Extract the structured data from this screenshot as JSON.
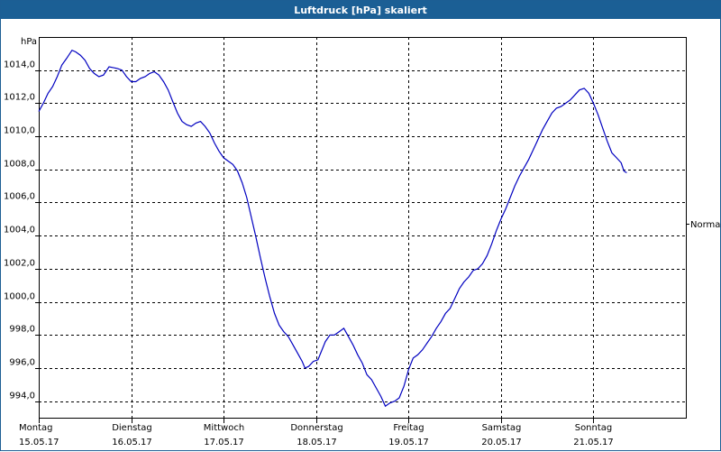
{
  "window": {
    "title": "Luftdruck [hPa] skaliert"
  },
  "chart_data": {
    "type": "line",
    "title": "Luftdruck [hPa] skaliert",
    "ylabel": "hPa",
    "xlabel": "",
    "xlim": [
      0,
      7
    ],
    "ylim": [
      993.0,
      1016.0
    ],
    "yticks": [
      994.0,
      996.0,
      998.0,
      1000.0,
      1002.0,
      1004.0,
      1006.0,
      1008.0,
      1010.0,
      1012.0,
      1014.0
    ],
    "ytick_labels": [
      "994,0",
      "996,0",
      "998,0",
      "1000,0",
      "1002,0",
      "1004,0",
      "1006,0",
      "1008,0",
      "1010,0",
      "1012,0",
      "1014,0"
    ],
    "x_day_labels": [
      {
        "day": "Montag",
        "date": "15.05.17"
      },
      {
        "day": "Dienstag",
        "date": "16.05.17"
      },
      {
        "day": "Mittwoch",
        "date": "17.05.17"
      },
      {
        "day": "Donnerstag",
        "date": "18.05.17"
      },
      {
        "day": "Freitag",
        "date": "19.05.17"
      },
      {
        "day": "Samstag",
        "date": "20.05.17"
      },
      {
        "day": "Sonntag",
        "date": "21.05.17"
      }
    ],
    "grid": true,
    "legend": {
      "position": "right",
      "entries": [
        "Normal"
      ]
    },
    "series": [
      {
        "name": "Luftdruck",
        "color": "#0000c0",
        "points": [
          [
            0.0,
            1011.5
          ],
          [
            0.05,
            1012.0
          ],
          [
            0.1,
            1012.6
          ],
          [
            0.15,
            1013.0
          ],
          [
            0.2,
            1013.6
          ],
          [
            0.25,
            1014.3
          ],
          [
            0.3,
            1014.7
          ],
          [
            0.36,
            1015.2
          ],
          [
            0.4,
            1015.1
          ],
          [
            0.45,
            1014.9
          ],
          [
            0.5,
            1014.6
          ],
          [
            0.55,
            1014.1
          ],
          [
            0.6,
            1013.8
          ],
          [
            0.65,
            1013.6
          ],
          [
            0.7,
            1013.7
          ],
          [
            0.76,
            1014.2
          ],
          [
            0.85,
            1014.1
          ],
          [
            0.9,
            1014.0
          ],
          [
            0.95,
            1013.6
          ],
          [
            1.0,
            1013.3
          ],
          [
            1.05,
            1013.3
          ],
          [
            1.1,
            1013.5
          ],
          [
            1.15,
            1013.6
          ],
          [
            1.2,
            1013.8
          ],
          [
            1.25,
            1013.9
          ],
          [
            1.3,
            1013.7
          ],
          [
            1.35,
            1013.3
          ],
          [
            1.4,
            1012.8
          ],
          [
            1.45,
            1012.1
          ],
          [
            1.5,
            1011.4
          ],
          [
            1.55,
            1010.9
          ],
          [
            1.6,
            1010.7
          ],
          [
            1.65,
            1010.6
          ],
          [
            1.7,
            1010.8
          ],
          [
            1.75,
            1010.9
          ],
          [
            1.8,
            1010.6
          ],
          [
            1.85,
            1010.2
          ],
          [
            1.9,
            1009.6
          ],
          [
            1.95,
            1009.1
          ],
          [
            2.0,
            1008.7
          ],
          [
            2.05,
            1008.5
          ],
          [
            2.1,
            1008.3
          ],
          [
            2.15,
            1007.9
          ],
          [
            2.2,
            1007.2
          ],
          [
            2.25,
            1006.3
          ],
          [
            2.3,
            1005.1
          ],
          [
            2.35,
            1003.9
          ],
          [
            2.4,
            1002.6
          ],
          [
            2.45,
            1001.4
          ],
          [
            2.5,
            1000.3
          ],
          [
            2.55,
            999.3
          ],
          [
            2.6,
            998.6
          ],
          [
            2.65,
            998.2
          ],
          [
            2.7,
            997.9
          ],
          [
            2.75,
            997.4
          ],
          [
            2.8,
            996.9
          ],
          [
            2.85,
            996.4
          ],
          [
            2.88,
            996.0
          ],
          [
            2.92,
            996.1
          ],
          [
            2.97,
            996.4
          ],
          [
            3.02,
            996.5
          ],
          [
            3.05,
            996.9
          ],
          [
            3.1,
            997.6
          ],
          [
            3.15,
            998.0
          ],
          [
            3.2,
            998.0
          ],
          [
            3.25,
            998.2
          ],
          [
            3.3,
            998.4
          ],
          [
            3.35,
            997.9
          ],
          [
            3.4,
            997.4
          ],
          [
            3.45,
            996.8
          ],
          [
            3.5,
            996.3
          ],
          [
            3.55,
            995.6
          ],
          [
            3.6,
            995.3
          ],
          [
            3.65,
            994.8
          ],
          [
            3.7,
            994.3
          ],
          [
            3.75,
            993.7
          ],
          [
            3.8,
            993.9
          ],
          [
            3.85,
            994.0
          ],
          [
            3.9,
            994.2
          ],
          [
            3.95,
            994.9
          ],
          [
            4.0,
            995.9
          ],
          [
            4.05,
            996.6
          ],
          [
            4.1,
            996.8
          ],
          [
            4.15,
            997.1
          ],
          [
            4.2,
            997.5
          ],
          [
            4.25,
            997.9
          ],
          [
            4.3,
            998.4
          ],
          [
            4.35,
            998.8
          ],
          [
            4.4,
            999.3
          ],
          [
            4.45,
            999.6
          ],
          [
            4.5,
            1000.2
          ],
          [
            4.55,
            1000.8
          ],
          [
            4.6,
            1001.2
          ],
          [
            4.65,
            1001.5
          ],
          [
            4.7,
            1001.9
          ],
          [
            4.75,
            1002.0
          ],
          [
            4.8,
            1002.3
          ],
          [
            4.85,
            1002.8
          ],
          [
            4.9,
            1003.5
          ],
          [
            4.95,
            1004.3
          ],
          [
            5.0,
            1005.0
          ],
          [
            5.05,
            1005.6
          ],
          [
            5.1,
            1006.3
          ],
          [
            5.15,
            1007.0
          ],
          [
            5.2,
            1007.6
          ],
          [
            5.25,
            1008.1
          ],
          [
            5.3,
            1008.6
          ],
          [
            5.35,
            1009.2
          ],
          [
            5.4,
            1009.8
          ],
          [
            5.45,
            1010.4
          ],
          [
            5.5,
            1010.9
          ],
          [
            5.55,
            1011.4
          ],
          [
            5.6,
            1011.7
          ],
          [
            5.65,
            1011.8
          ],
          [
            5.7,
            1012.0
          ],
          [
            5.75,
            1012.2
          ],
          [
            5.8,
            1012.5
          ],
          [
            5.85,
            1012.8
          ],
          [
            5.9,
            1012.9
          ],
          [
            5.95,
            1012.6
          ],
          [
            6.0,
            1012.0
          ],
          [
            6.05,
            1011.3
          ],
          [
            6.1,
            1010.5
          ],
          [
            6.15,
            1009.7
          ],
          [
            6.2,
            1009.0
          ],
          [
            6.25,
            1008.7
          ],
          [
            6.3,
            1008.4
          ],
          [
            6.33,
            1007.9
          ],
          [
            6.36,
            1007.8
          ]
        ]
      }
    ]
  }
}
